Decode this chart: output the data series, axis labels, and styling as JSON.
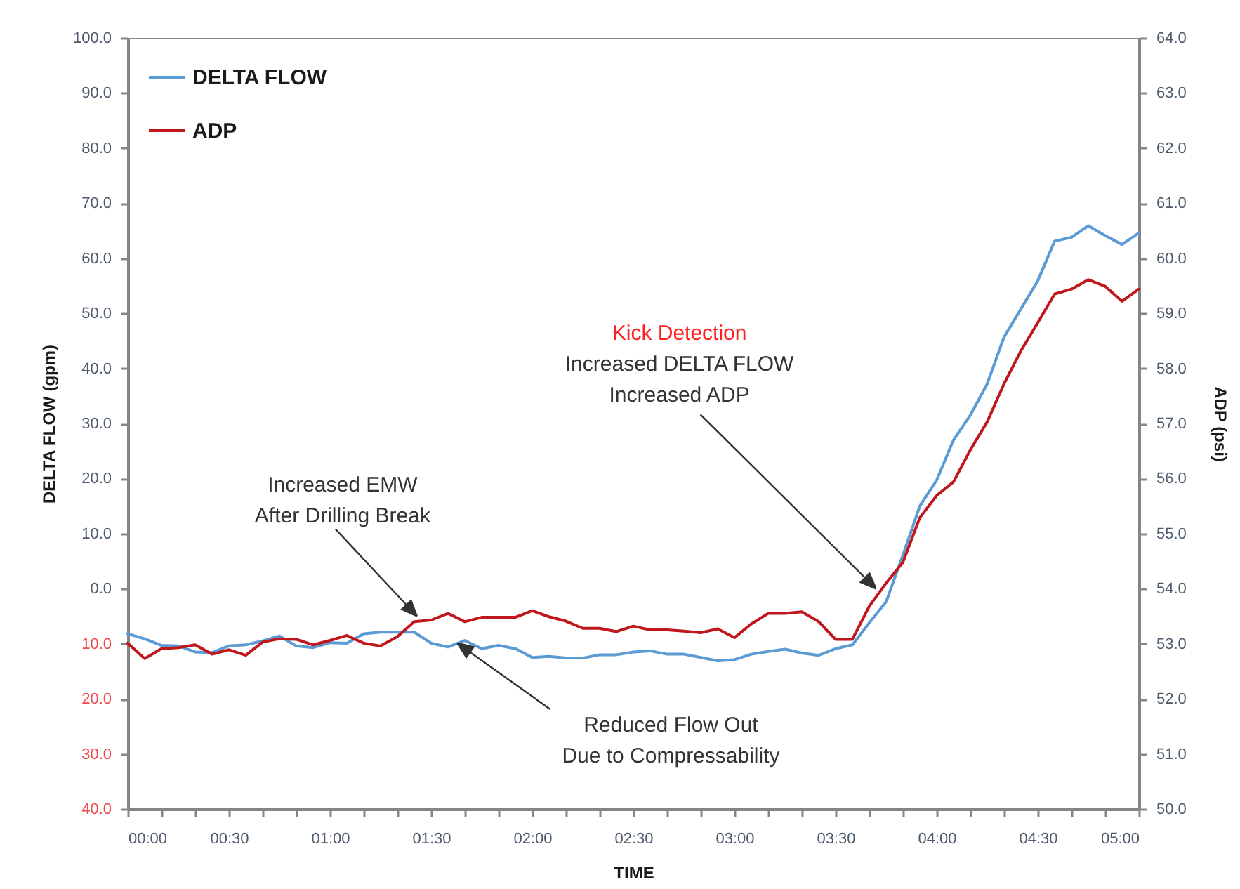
{
  "chart_data": {
    "type": "line",
    "xlabel": "TIME",
    "ylabel": "DELTA FLOW (gpm)",
    "y2label": "ADP  (psi)",
    "x": [
      0,
      0.0833,
      0.1667,
      0.25,
      0.3333,
      0.4167,
      0.5,
      0.5833,
      0.6667,
      0.75,
      0.8333,
      0.9167,
      1,
      1.0833,
      1.1667,
      1.25,
      1.3333,
      1.4167,
      1.5,
      1.5833,
      1.6667,
      1.75,
      1.8333,
      1.9167,
      2,
      2.0833,
      2.1667,
      2.25,
      2.3333,
      2.4167,
      2.5,
      2.5833,
      2.6667,
      2.75,
      2.8333,
      2.9167,
      3,
      3.0833,
      3.1667,
      3.25,
      3.3333,
      3.4167,
      3.5,
      3.5833,
      3.6667,
      3.75,
      3.8333,
      3.9167,
      4,
      4.0833,
      4.1667,
      4.25,
      4.3333,
      4.4167,
      4.5,
      4.5833,
      4.6667,
      4.75,
      4.8333,
      4.9167,
      5
    ],
    "series": [
      {
        "name": "DELTA FLOW",
        "color": "#5b9bd5",
        "values": [
          -8.2,
          -9.1,
          -10.3,
          -10.4,
          -11.5,
          -11.6,
          -10.4,
          -10.2,
          -9.5,
          -8.6,
          -10.4,
          -10.7,
          -9.8,
          -9.9,
          -8.2,
          -7.9,
          -7.9,
          -7.9,
          -9.9,
          -10.6,
          -9.4,
          -10.9,
          -10.3,
          -10.9,
          -12.5,
          -12.3,
          -12.6,
          -12.6,
          -12.0,
          -12.0,
          -11.5,
          -11.3,
          -11.9,
          -11.9,
          -12.5,
          -13.1,
          -12.9,
          -11.9,
          -11.4,
          -11.0,
          -11.7,
          -12.1,
          -10.9,
          -10.2,
          -6.2,
          -2.4,
          6.1,
          15.0,
          19.7,
          27.0,
          31.5,
          37.2,
          45.7,
          50.8,
          55.9,
          63.1,
          63.8,
          65.9,
          64.1,
          62.5,
          64.6
        ]
      },
      {
        "name": "ADP",
        "color": "#c0171d",
        "axis": "y2",
        "values": [
          53.01,
          52.73,
          52.91,
          52.93,
          52.98,
          52.81,
          52.89,
          52.79,
          53.03,
          53.09,
          53.08,
          52.98,
          53.06,
          53.15,
          53.01,
          52.96,
          53.13,
          53.4,
          53.43,
          53.55,
          53.4,
          53.48,
          53.48,
          53.48,
          53.6,
          53.49,
          53.41,
          53.28,
          53.28,
          53.22,
          53.32,
          53.25,
          53.25,
          53.23,
          53.2,
          53.27,
          53.11,
          53.36,
          53.55,
          53.55,
          53.58,
          53.4,
          53.08,
          53.08,
          53.68,
          54.1,
          54.48,
          55.29,
          55.69,
          55.94,
          56.52,
          57.03,
          57.72,
          58.32,
          58.83,
          59.35,
          59.44,
          59.61,
          59.49,
          59.22,
          59.44
        ]
      }
    ],
    "xlim": [
      0,
      5
    ],
    "xticks": [
      {
        "value": 0,
        "label": "00:00"
      },
      {
        "value": 0.1667,
        "label": null
      },
      {
        "value": 0.3333,
        "label": null
      },
      {
        "value": 0.5,
        "label": "00:30"
      },
      {
        "value": 0.6667,
        "label": null
      },
      {
        "value": 0.8333,
        "label": null
      },
      {
        "value": 1,
        "label": "01:00"
      },
      {
        "value": 1.1667,
        "label": null
      },
      {
        "value": 1.3333,
        "label": null
      },
      {
        "value": 1.5,
        "label": "01:30"
      },
      {
        "value": 1.6667,
        "label": null
      },
      {
        "value": 1.8333,
        "label": null
      },
      {
        "value": 2,
        "label": "02:00"
      },
      {
        "value": 2.1667,
        "label": null
      },
      {
        "value": 2.3333,
        "label": null
      },
      {
        "value": 2.5,
        "label": "02:30"
      },
      {
        "value": 2.6667,
        "label": null
      },
      {
        "value": 2.8333,
        "label": null
      },
      {
        "value": 3,
        "label": "03:00"
      },
      {
        "value": 3.1667,
        "label": null
      },
      {
        "value": 3.3333,
        "label": null
      },
      {
        "value": 3.5,
        "label": "03:30"
      },
      {
        "value": 3.6667,
        "label": null
      },
      {
        "value": 3.8333,
        "label": null
      },
      {
        "value": 4,
        "label": "04:00"
      },
      {
        "value": 4.1667,
        "label": null
      },
      {
        "value": 4.3333,
        "label": null
      },
      {
        "value": 4.5,
        "label": "04:30"
      },
      {
        "value": 4.6667,
        "label": null
      },
      {
        "value": 4.8333,
        "label": null
      },
      {
        "value": 5,
        "label": "05:00"
      }
    ],
    "ylim": [
      -40,
      100
    ],
    "yticks": [
      {
        "value": -40,
        "label": "40.0"
      },
      {
        "value": -30,
        "label": "30.0"
      },
      {
        "value": -20,
        "label": "20.0"
      },
      {
        "value": -10,
        "label": "10.0"
      },
      {
        "value": 0,
        "label": "0.0"
      },
      {
        "value": 10,
        "label": "10.0"
      },
      {
        "value": 20,
        "label": "20.0"
      },
      {
        "value": 30,
        "label": "30.0"
      },
      {
        "value": 40,
        "label": "40.0"
      },
      {
        "value": 50,
        "label": "50.0"
      },
      {
        "value": 60,
        "label": "60.0"
      },
      {
        "value": 70,
        "label": "70.0"
      },
      {
        "value": 80,
        "label": "80.0"
      },
      {
        "value": 90,
        "label": "90.0"
      },
      {
        "value": 100,
        "label": "100.0"
      }
    ],
    "y2lim": [
      50,
      64
    ],
    "y2ticks": [
      {
        "value": 50,
        "label": "50.0"
      },
      {
        "value": 51,
        "label": "51.0"
      },
      {
        "value": 52,
        "label": "52.0"
      },
      {
        "value": 53,
        "label": "53.0"
      },
      {
        "value": 54,
        "label": "54.0"
      },
      {
        "value": 55,
        "label": "55.0"
      },
      {
        "value": 56,
        "label": "56.0"
      },
      {
        "value": 57,
        "label": "57.0"
      },
      {
        "value": 58,
        "label": "58.0"
      },
      {
        "value": 59,
        "label": "59.0"
      },
      {
        "value": 60,
        "label": "60.0"
      },
      {
        "value": 61,
        "label": "61.0"
      },
      {
        "value": 62,
        "label": "62.0"
      },
      {
        "value": 63,
        "label": "63.0"
      },
      {
        "value": 64,
        "label": "64.0"
      }
    ],
    "legend": "top left",
    "annotations": [
      {
        "text": "Kick Detection\nIncreased DELTA FLOW\nIncreased ADP",
        "x": 3.7,
        "y": 0
      },
      {
        "text": "Increased EMW\nAfter Drilling Break",
        "x": 1.43,
        "y": -5
      },
      {
        "text": "Reduced Flow Out\nDue to Compressability",
        "x": 1.63,
        "y": -9.9
      }
    ]
  }
}
